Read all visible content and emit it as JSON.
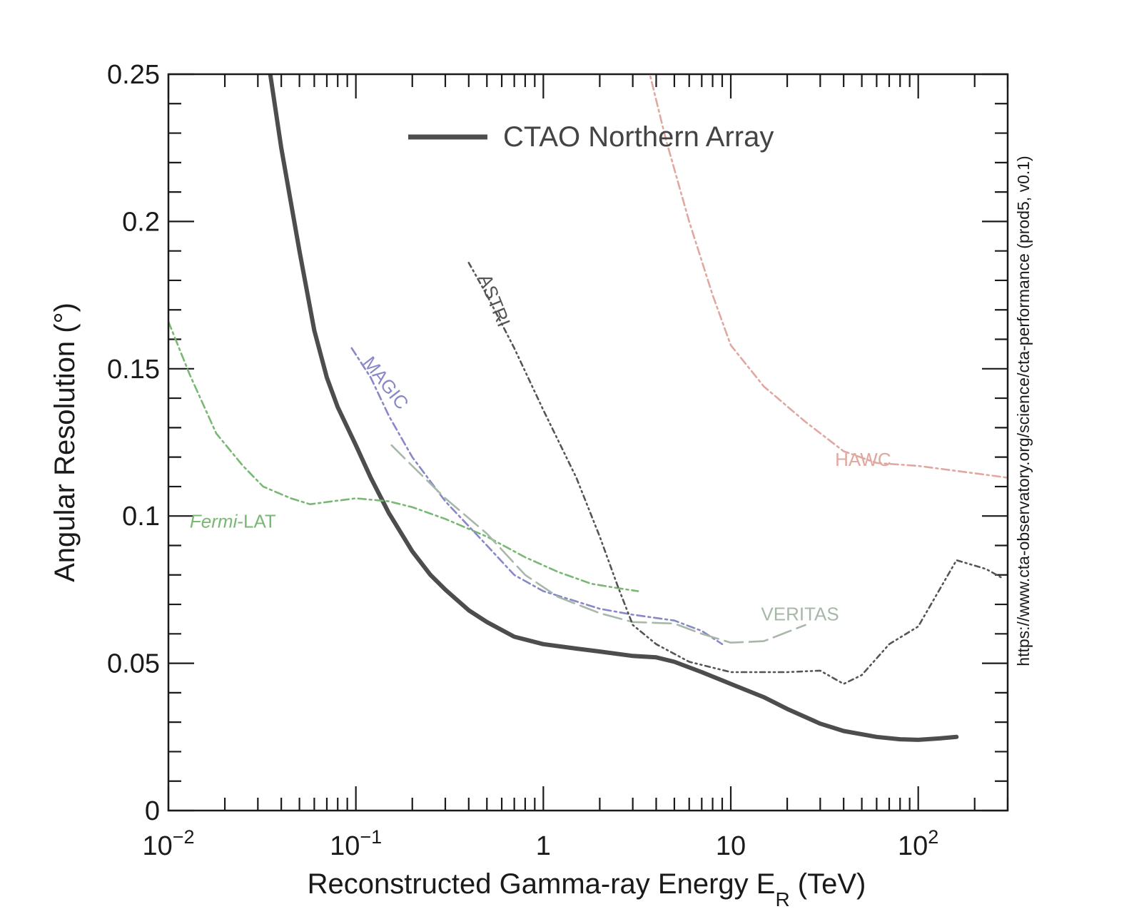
{
  "chart_data": {
    "type": "line",
    "xlabel": "Reconstructed Gamma-ray Energy E",
    "xlabel_sub": "R",
    "xlabel_unit": " (TeV)",
    "ylabel": "Angular Resolution (°)",
    "xscale": "log",
    "xlim": [
      0.01,
      300
    ],
    "ylim": [
      0,
      0.25
    ],
    "grid": false,
    "legend_position": "top-center",
    "x_ticks": [
      {
        "value": 0.01,
        "base": "10",
        "exp": "−2"
      },
      {
        "value": 0.1,
        "base": "10",
        "exp": "−1"
      },
      {
        "value": 1,
        "base": "1",
        "exp": ""
      },
      {
        "value": 10,
        "base": "10",
        "exp": ""
      },
      {
        "value": 100,
        "base": "10",
        "exp": "2"
      }
    ],
    "y_ticks": [
      {
        "value": 0,
        "label": "0"
      },
      {
        "value": 0.05,
        "label": "0.05"
      },
      {
        "value": 0.1,
        "label": "0.1"
      },
      {
        "value": 0.15,
        "label": "0.15"
      },
      {
        "value": 0.2,
        "label": "0.2"
      },
      {
        "value": 0.25,
        "label": "0.25"
      }
    ],
    "side_text": "https://www.cta-observatory.org/science/cta-performance (prod5, v0.1)",
    "series": [
      {
        "name": "CTAO Northern Array",
        "color": "#4d4d4d",
        "style": "solid",
        "in_legend": true,
        "points": [
          [
            0.034,
            0.255
          ],
          [
            0.04,
            0.225
          ],
          [
            0.05,
            0.19
          ],
          [
            0.06,
            0.163
          ],
          [
            0.07,
            0.147
          ],
          [
            0.08,
            0.137
          ],
          [
            0.1,
            0.124
          ],
          [
            0.12,
            0.113
          ],
          [
            0.15,
            0.101
          ],
          [
            0.2,
            0.088
          ],
          [
            0.25,
            0.08
          ],
          [
            0.3,
            0.075
          ],
          [
            0.4,
            0.068
          ],
          [
            0.5,
            0.064
          ],
          [
            0.7,
            0.059
          ],
          [
            1.0,
            0.0565
          ],
          [
            1.5,
            0.055
          ],
          [
            2.0,
            0.054
          ],
          [
            3.0,
            0.0525
          ],
          [
            4.0,
            0.052
          ],
          [
            5.0,
            0.0505
          ],
          [
            7.0,
            0.047
          ],
          [
            10.0,
            0.043
          ],
          [
            15.0,
            0.0385
          ],
          [
            20.0,
            0.0345
          ],
          [
            30.0,
            0.0295
          ],
          [
            40.0,
            0.027
          ],
          [
            60.0,
            0.025
          ],
          [
            80.0,
            0.0242
          ],
          [
            100.0,
            0.024
          ],
          [
            130.0,
            0.0245
          ],
          [
            160.0,
            0.025
          ]
        ]
      },
      {
        "name": "Fermi-LAT",
        "label_parts": [
          "Fermi",
          "-LAT"
        ],
        "color": "#79b874",
        "style": "dashdot",
        "label_at": [
          0.013,
          0.096
        ],
        "label_rotation": 0,
        "points": [
          [
            0.01,
            0.166
          ],
          [
            0.013,
            0.148
          ],
          [
            0.018,
            0.128
          ],
          [
            0.025,
            0.117
          ],
          [
            0.032,
            0.11
          ],
          [
            0.045,
            0.106
          ],
          [
            0.057,
            0.104
          ],
          [
            0.075,
            0.105
          ],
          [
            0.1,
            0.106
          ],
          [
            0.15,
            0.105
          ],
          [
            0.2,
            0.103
          ],
          [
            0.3,
            0.099
          ],
          [
            0.5,
            0.093
          ],
          [
            0.8,
            0.086
          ],
          [
            1.2,
            0.081
          ],
          [
            1.8,
            0.077
          ],
          [
            2.5,
            0.0755
          ],
          [
            3.2,
            0.0745
          ]
        ]
      },
      {
        "name": "MAGIC",
        "color": "#8888c8",
        "style": "dashdot",
        "label_at": [
          0.108,
          0.152
        ],
        "label_rotation": 52,
        "points": [
          [
            0.095,
            0.157
          ],
          [
            0.12,
            0.147
          ],
          [
            0.15,
            0.134
          ],
          [
            0.2,
            0.12
          ],
          [
            0.3,
            0.105
          ],
          [
            0.5,
            0.09
          ],
          [
            0.7,
            0.08
          ],
          [
            1.0,
            0.0745
          ],
          [
            1.5,
            0.071
          ],
          [
            2.0,
            0.0685
          ],
          [
            3.0,
            0.0665
          ],
          [
            5.0,
            0.0645
          ],
          [
            7.0,
            0.061
          ],
          [
            9.0,
            0.0565
          ]
        ]
      },
      {
        "name": "VERITAS",
        "color": "#a8b8a8",
        "style": "longdash",
        "label_at": [
          14.5,
          0.0645
        ],
        "label_rotation": 0,
        "points": [
          [
            0.155,
            0.124
          ],
          [
            0.2,
            0.117
          ],
          [
            0.3,
            0.106
          ],
          [
            0.5,
            0.094
          ],
          [
            0.8,
            0.08
          ],
          [
            1.2,
            0.0725
          ],
          [
            2.0,
            0.067
          ],
          [
            3.0,
            0.064
          ],
          [
            5.0,
            0.0635
          ],
          [
            7.0,
            0.06
          ],
          [
            10.0,
            0.057
          ],
          [
            15.0,
            0.0575
          ],
          [
            25.0,
            0.063
          ]
        ]
      },
      {
        "name": "ASTRI",
        "color": "#555555",
        "style": "dashdotdot",
        "label_at": [
          0.45,
          0.181
        ],
        "label_rotation": 68,
        "points": [
          [
            0.4,
            0.186
          ],
          [
            0.5,
            0.175
          ],
          [
            0.7,
            0.157
          ],
          [
            1.0,
            0.136
          ],
          [
            1.5,
            0.113
          ],
          [
            2.0,
            0.093
          ],
          [
            2.5,
            0.076
          ],
          [
            3.0,
            0.063
          ],
          [
            4.0,
            0.0565
          ],
          [
            6.0,
            0.0505
          ],
          [
            10.0,
            0.047
          ],
          [
            20.0,
            0.047
          ],
          [
            30.0,
            0.0475
          ],
          [
            40.0,
            0.043
          ],
          [
            50.0,
            0.046
          ],
          [
            70.0,
            0.0565
          ],
          [
            100.0,
            0.0625
          ],
          [
            160.0,
            0.085
          ],
          [
            230.0,
            0.082
          ],
          [
            280.0,
            0.079
          ]
        ]
      },
      {
        "name": "HAWC",
        "color": "#e0a8a0",
        "style": "dashdot",
        "label_at": [
          36.0,
          0.117
        ],
        "label_rotation": 0,
        "points": [
          [
            3.6,
            0.253
          ],
          [
            4.5,
            0.228
          ],
          [
            6.0,
            0.2
          ],
          [
            8.0,
            0.175
          ],
          [
            10.0,
            0.158
          ],
          [
            15.0,
            0.144
          ],
          [
            25.0,
            0.132
          ],
          [
            40.0,
            0.122
          ],
          [
            60.0,
            0.118
          ],
          [
            100.0,
            0.117
          ],
          [
            200.0,
            0.1145
          ],
          [
            300.0,
            0.113
          ]
        ]
      }
    ]
  }
}
